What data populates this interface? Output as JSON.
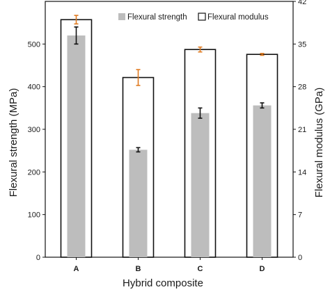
{
  "chart_data": {
    "type": "bar",
    "xlabel": "Hybrid composite",
    "ylabel": "Flexural strength (MPa)",
    "y2label": "Flexural modulus (GPa)",
    "categories": [
      "A",
      "B",
      "C",
      "D"
    ],
    "ylim": [
      0,
      600
    ],
    "y2lim": [
      0,
      42
    ],
    "yticks": [
      "0",
      "100",
      "200",
      "300",
      "400",
      "500"
    ],
    "y2ticks": [
      "0",
      "7",
      "14",
      "21",
      "28",
      "35",
      "42"
    ],
    "series": [
      {
        "name": "Flexural strength",
        "axis": "left",
        "color": "#bdbdbd",
        "error_color": "#111111",
        "values": [
          520,
          252,
          338,
          356
        ],
        "errors": [
          20,
          5,
          12,
          6
        ]
      },
      {
        "name": "Flexural modulus",
        "axis": "right",
        "fill": "#ffffff",
        "stroke": "#111111",
        "error_color": "#e07a1f",
        "values": [
          39.0,
          29.5,
          34.1,
          33.3
        ],
        "errors": [
          0.7,
          1.3,
          0.4,
          0.15
        ]
      }
    ],
    "grid": false,
    "legend_position": "top-right"
  }
}
